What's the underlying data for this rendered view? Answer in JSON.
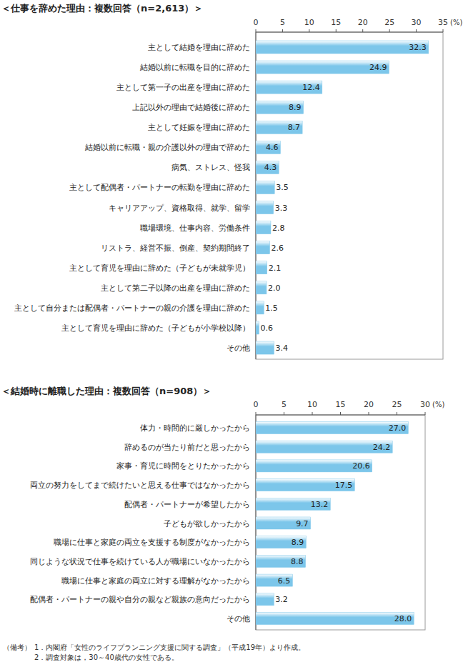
{
  "chart_data": [
    {
      "type": "bar",
      "orientation": "horizontal",
      "title": "＜仕事を辞めた理由：複数回答（n=2,613）＞",
      "xlabel": "(%)",
      "categories": [
        "主として結婚を理由に辞めた",
        "結婚以前に転職を目的に辞めた",
        "主として第一子の出産を理由に辞めた",
        "上記以外の理由で結婚後に辞めた",
        "主として妊娠を理由に辞めた",
        "結婚以前に転職・親の介護以外の理由で辞めた",
        "病気、ストレス、怪我",
        "主として配偶者・パートナーの転勤を理由に辞めた",
        "キャリアアップ、資格取得、就学、留学",
        "職場環境、仕事内容、労働条件",
        "リストラ、経営不振、倒産、契約期間終了",
        "主として育児を理由に辞めた（子どもが未就学児）",
        "主として第二子以降の出産を理由に辞めた",
        "主として自分または配偶者・パートナーの親の介護を理由に辞めた",
        "主として育児を理由に辞めた（子どもが小学校以降）",
        "その他"
      ],
      "values": [
        32.3,
        24.9,
        12.4,
        8.9,
        8.7,
        4.6,
        4.3,
        3.5,
        3.3,
        2.8,
        2.6,
        2.1,
        2.0,
        1.5,
        0.6,
        3.4
      ],
      "value_labels": [
        "32.3",
        "24.9",
        "12.4",
        "8.9",
        "8.7",
        "4.6",
        "4.3",
        "3.5",
        "3.3",
        "2.8",
        "2.6",
        "2.1",
        "2.0",
        "1.5",
        "0.6",
        "3.4"
      ],
      "color": "#7cc6ea",
      "xlim": [
        0,
        35
      ],
      "xticks": [
        0,
        5,
        10,
        15,
        20,
        25,
        30,
        35
      ],
      "grid": false,
      "data_labels": true
    },
    {
      "type": "bar",
      "orientation": "horizontal",
      "title": "＜結婚時に離職した理由：複数回答（n=908）＞",
      "xlabel": "(%)",
      "categories": [
        "体力・時間的に厳しかったから",
        "辞めるのが当たり前だと思ったから",
        "家事・育児に時間をとりたかったから",
        "両立の努力をしてまで続けたいと思える仕事ではなかったから",
        "配偶者・パートナーが希望したから",
        "子どもが欲しかったから",
        "職場に仕事と家庭の両立を支援する制度がなかったから",
        "同じような状況で仕事を続けている人が職場にいなかったから",
        "職場に仕事と家庭の両立に対する理解がなかったから",
        "配偶者・パートナーの親や自分の親など親族の意向だったから",
        "その他"
      ],
      "values": [
        27.0,
        24.2,
        20.6,
        17.5,
        13.2,
        9.7,
        8.9,
        8.8,
        6.5,
        3.2,
        28.0
      ],
      "value_labels": [
        "27.0",
        "24.2",
        "20.6",
        "17.5",
        "13.2",
        "9.7",
        "8.9",
        "8.8",
        "6.5",
        "3.2",
        "28.0"
      ],
      "color": "#7cc6ea",
      "xlim": [
        0,
        30
      ],
      "xticks": [
        0,
        5,
        10,
        15,
        20,
        25,
        30
      ],
      "grid": false,
      "data_labels": true
    }
  ],
  "notes": {
    "label": "（備考）",
    "items": [
      "1．内閣府「女性のライフプランニング支援に関する調査」（平成19年）より作成。",
      "2．調査対象は，30～40歳代の女性である。"
    ]
  }
}
